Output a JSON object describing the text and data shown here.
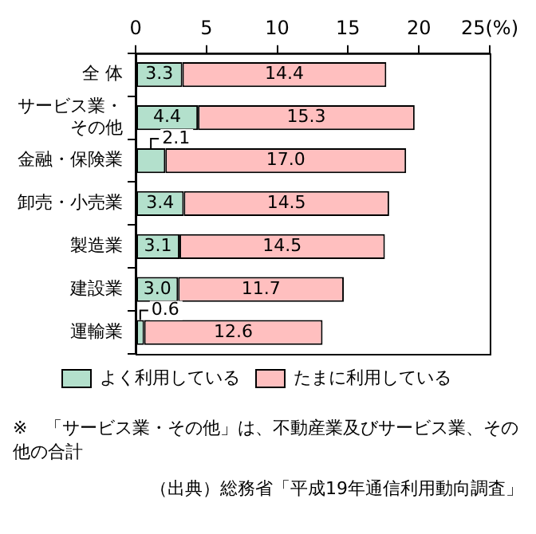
{
  "chart_data": {
    "type": "bar",
    "orientation": "horizontal",
    "stacked": true,
    "categories": [
      "全 体",
      "サービス業・その他",
      "金融・保険業",
      "卸売・小売業",
      "製造業",
      "建設業",
      "運輸業"
    ],
    "series": [
      {
        "name": "よく利用している",
        "color": "#b3e0cc",
        "values": [
          3.3,
          4.4,
          2.1,
          3.4,
          3.1,
          3.0,
          0.6
        ],
        "value_labels": [
          "3.3",
          "4.4",
          "2.1",
          "3.4",
          "3.1",
          "3.0",
          "0.6"
        ]
      },
      {
        "name": "たまに利用している",
        "color": "#ffbfbf",
        "values": [
          14.4,
          15.3,
          17.0,
          14.5,
          14.5,
          11.7,
          12.6
        ],
        "value_labels": [
          "14.4",
          "15.3",
          "17.0",
          "14.5",
          "14.5",
          "11.7",
          "12.6"
        ]
      }
    ],
    "xlim": [
      0,
      25
    ],
    "xticks": [
      0,
      5,
      10,
      15,
      20,
      {
        "value": 25,
        "label": "25(%)"
      }
    ],
    "grid": false,
    "legend": "bottom",
    "annotations": [
      "※　「サービス業・その他」は、不動産業及びサービス業、その他の合計",
      "（出典）総務省「平成19年通信利用動向調査」"
    ]
  }
}
